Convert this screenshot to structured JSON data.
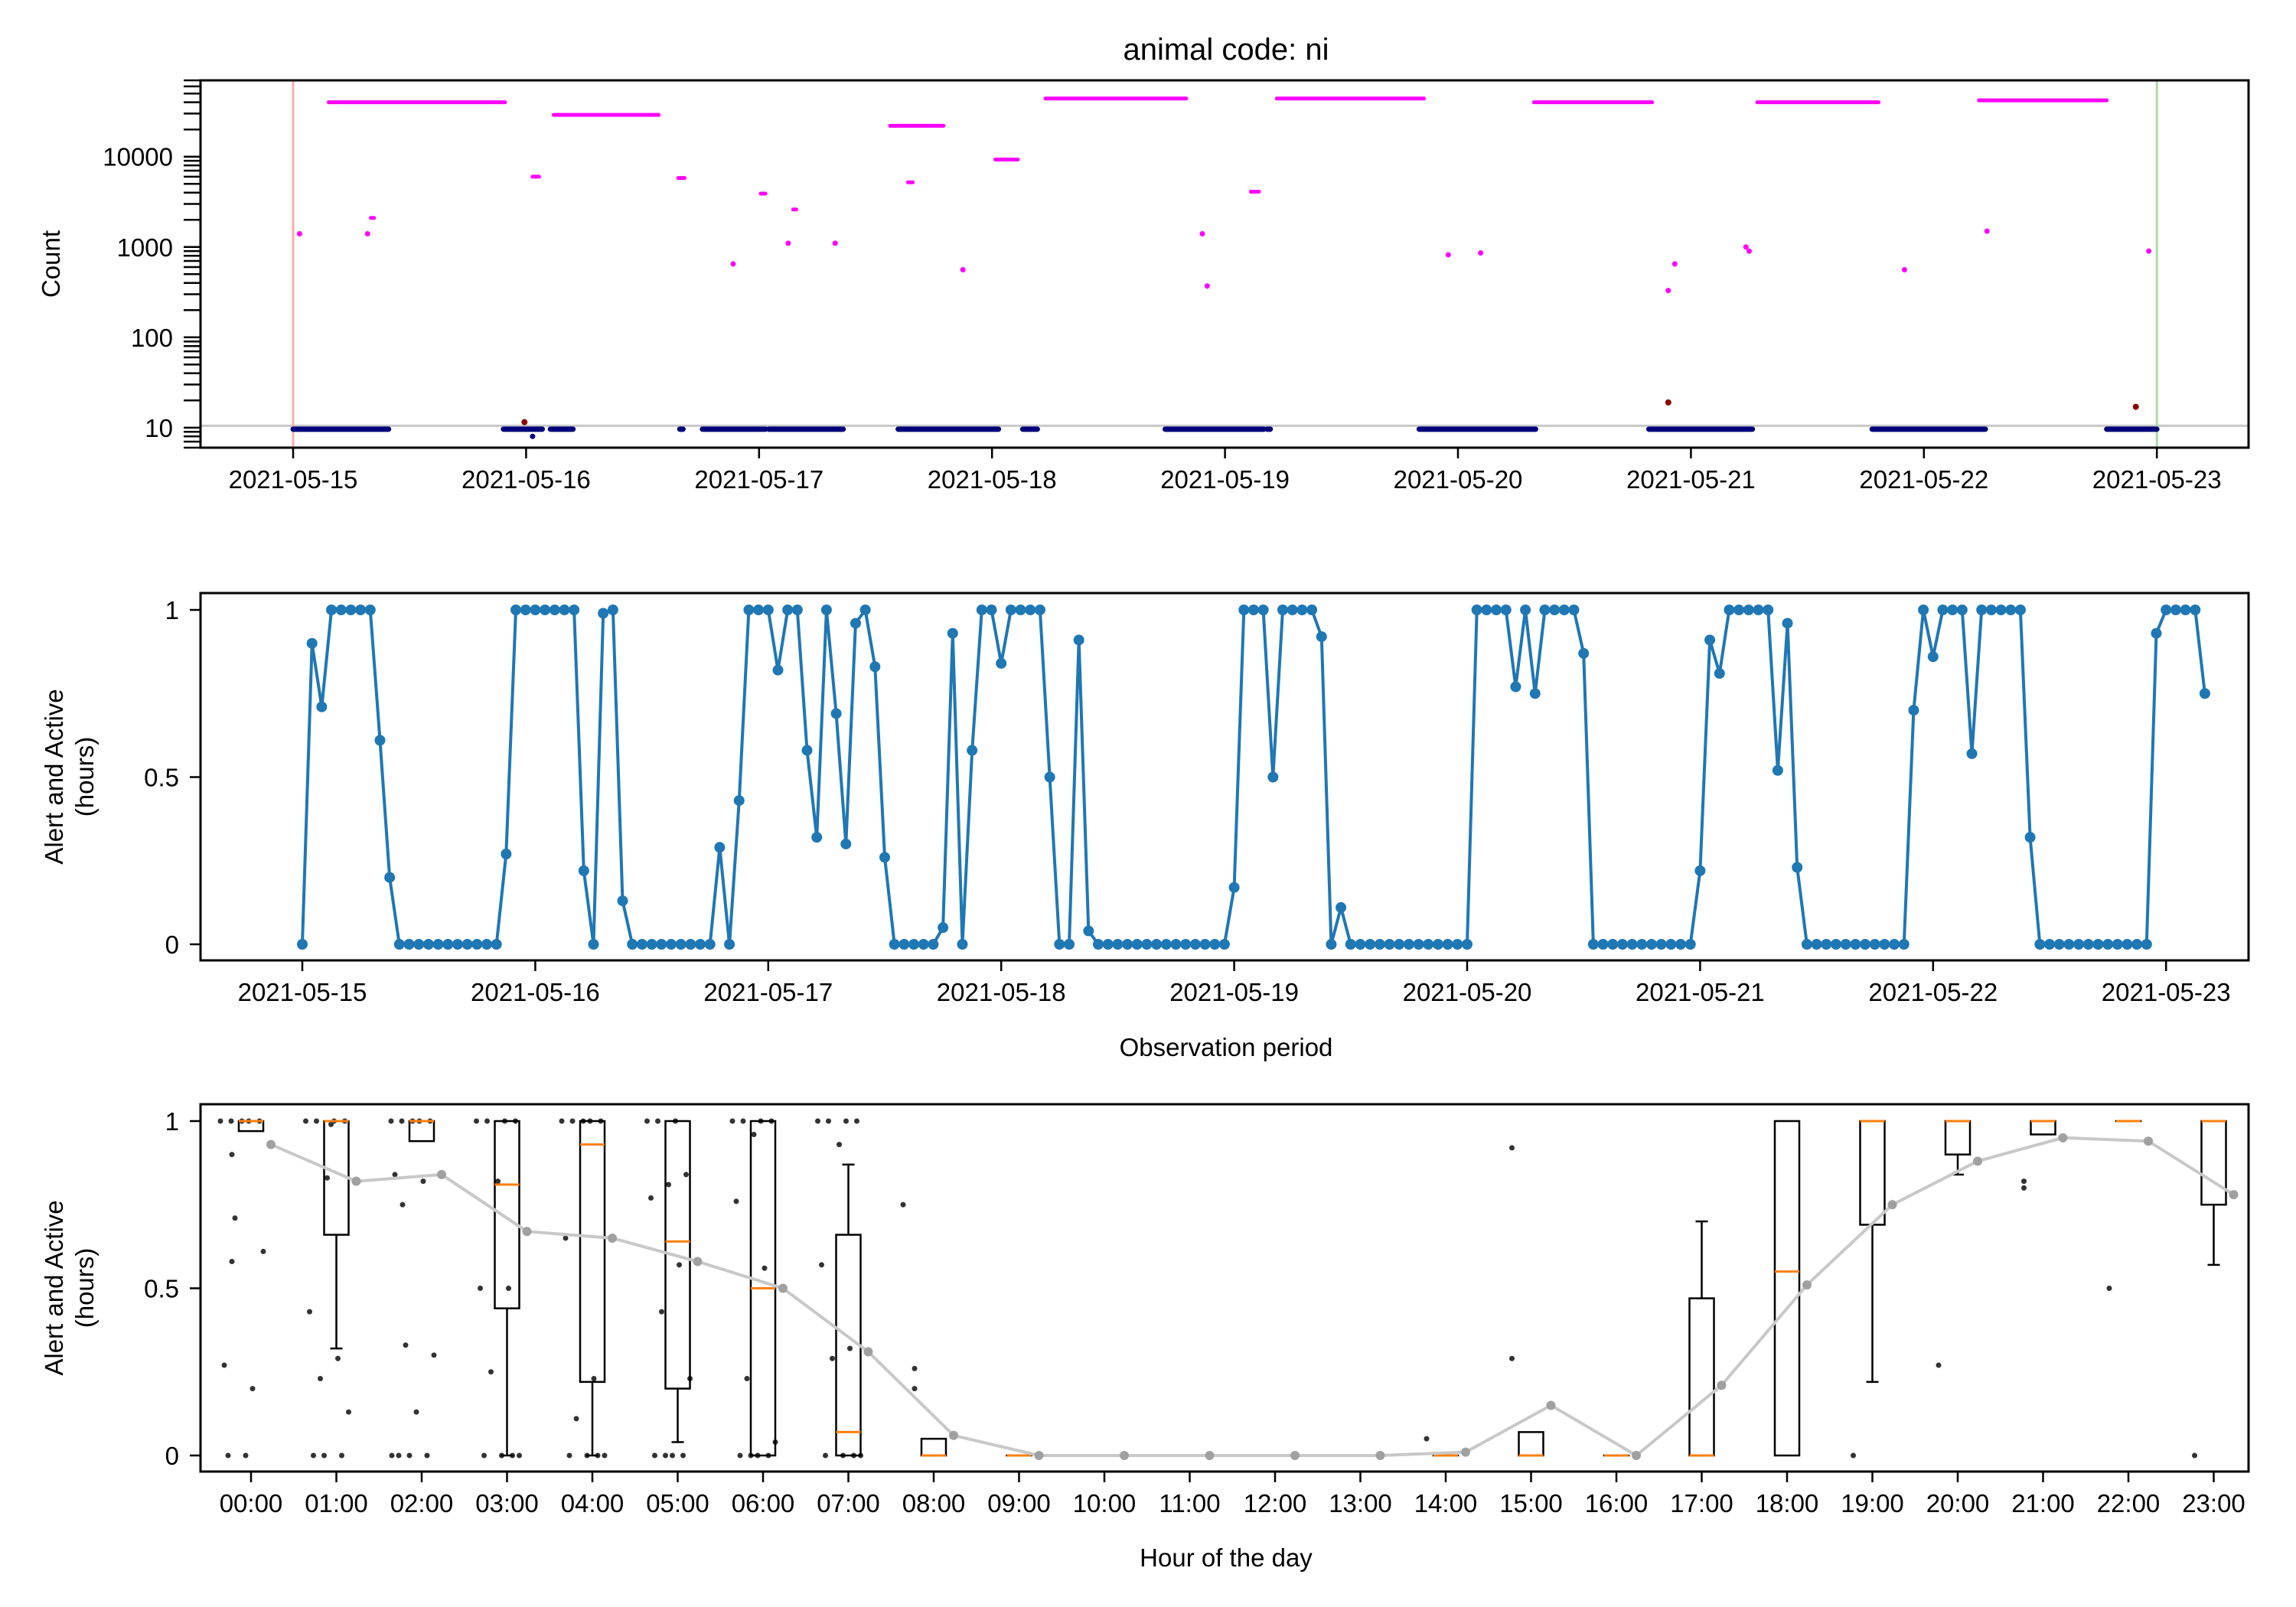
{
  "figure": {
    "title": "animal code: ni"
  },
  "chart_data": [
    {
      "type": "scatter",
      "panel": "top",
      "title": "animal code: ni",
      "ylabel": "Count",
      "xlabel": "",
      "y_scale": "log",
      "ylim": [
        6,
        70000
      ],
      "xlim": [
        "2021-05-14T15:00",
        "2021-05-23T16:00"
      ],
      "x_ticks": [
        "2021-05-15",
        "2021-05-16",
        "2021-05-17",
        "2021-05-18",
        "2021-05-19",
        "2021-05-20",
        "2021-05-21",
        "2021-05-22",
        "2021-05-23"
      ],
      "y_ticks": [
        10,
        100,
        1000,
        10000
      ],
      "y_tick_labels": [
        "10",
        "100",
        "1000",
        "10000"
      ],
      "grid": false,
      "reference_lines": [
        {
          "orientation": "horizontal",
          "y": 10.5,
          "color": "#c8c8c8"
        },
        {
          "orientation": "vertical",
          "x": "2021-05-15T00:00",
          "color": "#ffaaaa"
        },
        {
          "orientation": "vertical",
          "x": "2021-05-23T00:00",
          "color": "#a8dba8"
        }
      ],
      "colors": {
        "magenta": "#ff00ff",
        "navy": "#00007a",
        "darkred": "#8b0000"
      },
      "magenta_segments": [
        {
          "x0": "2021-05-15T03:40",
          "x1": "2021-05-15T21:50",
          "y": 40000
        },
        {
          "x0": "2021-05-16T02:50",
          "x1": "2021-05-16T13:40",
          "y": 29000
        },
        {
          "x0": "2021-05-17T13:30",
          "x1": "2021-05-17T19:00",
          "y": 22000
        },
        {
          "x0": "2021-05-18T05:30",
          "x1": "2021-05-18T20:00",
          "y": 44000
        },
        {
          "x0": "2021-05-19T05:20",
          "x1": "2021-05-19T20:30",
          "y": 44000
        },
        {
          "x0": "2021-05-20T07:50",
          "x1": "2021-05-20T20:00",
          "y": 40000
        },
        {
          "x0": "2021-05-21T06:50",
          "x1": "2021-05-21T19:20",
          "y": 40000
        },
        {
          "x0": "2021-05-22T05:40",
          "x1": "2021-05-22T18:50",
          "y": 42000
        },
        {
          "x0": "2021-05-16T00:40",
          "x1": "2021-05-16T01:20",
          "y": 6000
        },
        {
          "x0": "2021-05-16T15:40",
          "x1": "2021-05-16T16:20",
          "y": 5800
        },
        {
          "x0": "2021-05-17T15:20",
          "x1": "2021-05-17T15:50",
          "y": 5200
        },
        {
          "x0": "2021-05-18T00:20",
          "x1": "2021-05-18T02:40",
          "y": 9300
        },
        {
          "x0": "2021-05-17T00:10",
          "x1": "2021-05-17T00:40",
          "y": 3900
        },
        {
          "x0": "2021-05-17T03:30",
          "x1": "2021-05-17T03:50",
          "y": 2600
        },
        {
          "x0": "2021-05-19T02:40",
          "x1": "2021-05-19T03:30",
          "y": 4100
        },
        {
          "x0": "2021-05-15T08:00",
          "x1": "2021-05-15T08:20",
          "y": 2100
        }
      ],
      "magenta_points": [
        {
          "x": "2021-05-15T00:40",
          "y": 1400
        },
        {
          "x": "2021-05-15T07:40",
          "y": 1400
        },
        {
          "x": "2021-05-16T21:20",
          "y": 650
        },
        {
          "x": "2021-05-17T03:00",
          "y": 1100
        },
        {
          "x": "2021-05-17T07:50",
          "y": 1100
        },
        {
          "x": "2021-05-17T21:00",
          "y": 560
        },
        {
          "x": "2021-05-18T21:40",
          "y": 1400
        },
        {
          "x": "2021-05-18T22:10",
          "y": 370
        },
        {
          "x": "2021-05-19T23:00",
          "y": 820
        },
        {
          "x": "2021-05-20T02:20",
          "y": 860
        },
        {
          "x": "2021-05-20T21:40",
          "y": 330
        },
        {
          "x": "2021-05-20T22:20",
          "y": 650
        },
        {
          "x": "2021-05-21T05:40",
          "y": 1000
        },
        {
          "x": "2021-05-21T06:00",
          "y": 900
        },
        {
          "x": "2021-05-21T22:00",
          "y": 560
        },
        {
          "x": "2021-05-22T06:30",
          "y": 1500
        },
        {
          "x": "2021-05-22T23:10",
          "y": 900
        }
      ],
      "navy_segments": [
        {
          "x0": "2021-05-15T00:00",
          "x1": "2021-05-15T09:50",
          "y": 10
        },
        {
          "x0": "2021-05-15T21:40",
          "x1": "2021-05-16T01:40",
          "y": 10
        },
        {
          "x0": "2021-05-16T02:30",
          "x1": "2021-05-16T04:50",
          "y": 10
        },
        {
          "x0": "2021-05-16T15:50",
          "x1": "2021-05-16T16:10",
          "y": 10
        },
        {
          "x0": "2021-05-16T18:10",
          "x1": "2021-05-17T00:40",
          "y": 10
        },
        {
          "x0": "2021-05-17T01:00",
          "x1": "2021-05-17T08:40",
          "y": 10
        },
        {
          "x0": "2021-05-17T14:20",
          "x1": "2021-05-18T00:40",
          "y": 10
        },
        {
          "x0": "2021-05-18T03:10",
          "x1": "2021-05-18T04:40",
          "y": 10
        },
        {
          "x0": "2021-05-18T17:50",
          "x1": "2021-05-19T04:00",
          "y": 10
        },
        {
          "x0": "2021-05-19T04:20",
          "x1": "2021-05-19T04:40",
          "y": 10
        },
        {
          "x0": "2021-05-19T20:00",
          "x1": "2021-05-20T08:00",
          "y": 10
        },
        {
          "x0": "2021-05-20T19:40",
          "x1": "2021-05-21T06:20",
          "y": 10
        },
        {
          "x0": "2021-05-21T18:40",
          "x1": "2021-05-22T06:20",
          "y": 10
        },
        {
          "x0": "2021-05-22T18:50",
          "x1": "2021-05-23T00:00",
          "y": 10
        }
      ],
      "navy_points": [
        {
          "x": "2021-05-16T00:40",
          "y": 8
        }
      ],
      "darkred_points": [
        {
          "x": "2021-05-15T23:50",
          "y": 11.5
        },
        {
          "x": "2021-05-20T21:40",
          "y": 19
        },
        {
          "x": "2021-05-22T21:50",
          "y": 17
        }
      ]
    },
    {
      "type": "line",
      "panel": "middle",
      "title": "",
      "xlabel": "Observation period",
      "ylabel": "Alert and Active\n(hours)",
      "ylim": [
        -0.05,
        1.05
      ],
      "x_ticks": [
        "2021-05-15",
        "2021-05-16",
        "2021-05-17",
        "2021-05-18",
        "2021-05-19",
        "2021-05-20",
        "2021-05-21",
        "2021-05-22",
        "2021-05-23"
      ],
      "y_ticks": [
        0,
        0.5,
        1
      ],
      "y_tick_labels": [
        "0",
        "0.5",
        "1"
      ],
      "x_start": "2021-05-15T00:00",
      "x_step_hours": 1,
      "grid": false,
      "colors": {
        "line": "#1f77b4"
      },
      "series": [
        {
          "values": [
            0,
            0.9,
            0.71,
            1,
            1,
            1,
            1,
            1,
            0.61,
            0.2,
            0,
            0,
            0,
            0,
            0,
            0,
            0,
            0,
            0,
            0,
            0,
            0.27,
            1,
            1,
            1,
            1,
            1,
            1,
            1,
            0.22,
            0,
            0.99,
            1,
            0.13,
            0,
            0,
            0,
            0,
            0,
            0,
            0,
            0,
            0,
            0.29,
            0,
            0.43,
            1,
            1,
            1,
            0.82,
            1,
            1,
            0.58,
            0.32,
            1,
            0.69,
            0.3,
            0.96,
            1,
            0.83,
            0.26,
            0,
            0,
            0,
            0,
            0,
            0.05,
            0.93,
            0,
            0.58,
            1,
            1,
            0.84,
            1,
            1,
            1,
            1,
            0.5,
            0,
            0,
            0.91,
            0.04,
            0,
            0,
            0,
            0,
            0,
            0,
            0,
            0,
            0,
            0,
            0,
            0,
            0,
            0,
            0.17,
            1,
            1,
            1,
            0.5,
            1,
            1,
            1,
            1,
            0.92,
            0,
            0.11,
            0,
            0,
            0,
            0,
            0,
            0,
            0,
            0,
            0,
            0,
            0,
            0,
            0,
            1,
            1,
            1,
            1,
            0.77,
            1,
            0.75,
            1,
            1,
            1,
            1,
            0.87,
            0,
            0,
            0,
            0,
            0,
            0,
            0,
            0,
            0,
            0,
            0,
            0.22,
            0.91,
            0.81,
            1,
            1,
            1,
            1,
            1,
            0.52,
            0.96,
            0.23,
            0,
            0,
            0,
            0,
            0,
            0,
            0,
            0,
            0,
            0,
            0,
            0.7,
            1,
            0.86,
            1,
            1,
            1,
            0.57,
            1,
            1,
            1,
            1,
            1,
            0.32,
            0,
            0,
            0,
            0,
            0,
            0,
            0,
            0,
            0,
            0,
            0,
            0,
            0.93,
            1,
            1,
            1,
            1,
            0.75
          ]
        }
      ]
    },
    {
      "type": "box",
      "panel": "bottom",
      "title": "",
      "xlabel": "Hour of the day",
      "ylabel": "Alert and Active\n(hours)",
      "ylim": [
        -0.05,
        1.05
      ],
      "categories": [
        "00:00",
        "01:00",
        "02:00",
        "03:00",
        "04:00",
        "05:00",
        "06:00",
        "07:00",
        "08:00",
        "09:00",
        "10:00",
        "11:00",
        "12:00",
        "13:00",
        "14:00",
        "15:00",
        "16:00",
        "17:00",
        "18:00",
        "19:00",
        "20:00",
        "21:00",
        "22:00",
        "23:00"
      ],
      "y_ticks": [
        0,
        0.5,
        1
      ],
      "y_tick_labels": [
        "0",
        "0.5",
        "1"
      ],
      "grid": false,
      "colors": {
        "box": "#000000",
        "median": "#ff7f0e",
        "mean_line": "#c8c8c8",
        "mean_point": "#a0a0a0",
        "points": "#333333"
      },
      "boxes": [
        {
          "q1": 0.97,
          "median": 1,
          "q3": 1,
          "wlo": 0.97,
          "whi": 1
        },
        {
          "q1": 0.66,
          "median": 1,
          "q3": 1,
          "wlo": 0.32,
          "whi": 1
        },
        {
          "q1": 0.94,
          "median": 1,
          "q3": 1,
          "wlo": 0.94,
          "whi": 1
        },
        {
          "q1": 0.44,
          "median": 0.81,
          "q3": 1,
          "wlo": 0,
          "whi": 1
        },
        {
          "q1": 0.22,
          "median": 0.93,
          "q3": 1,
          "wlo": 0,
          "whi": 1
        },
        {
          "q1": 0.2,
          "median": 0.64,
          "q3": 1,
          "wlo": 0.04,
          "whi": 1
        },
        {
          "q1": 0,
          "median": 0.5,
          "q3": 1,
          "wlo": 0,
          "whi": 1
        },
        {
          "q1": 0,
          "median": 0.07,
          "q3": 0.66,
          "wlo": 0,
          "whi": 0.87
        },
        {
          "q1": 0,
          "median": 0,
          "q3": 0.05,
          "wlo": 0,
          "whi": 0.05
        },
        {
          "q1": 0,
          "median": 0,
          "q3": 0,
          "wlo": 0,
          "whi": 0
        },
        {
          "q1": 0,
          "median": 0,
          "q3": 0,
          "wlo": 0,
          "whi": 0
        },
        {
          "q1": 0,
          "median": 0,
          "q3": 0,
          "wlo": 0,
          "whi": 0
        },
        {
          "q1": 0,
          "median": 0,
          "q3": 0,
          "wlo": 0,
          "whi": 0
        },
        {
          "q1": 0,
          "median": 0,
          "q3": 0,
          "wlo": 0,
          "whi": 0
        },
        {
          "q1": 0,
          "median": 0,
          "q3": 0,
          "wlo": 0,
          "whi": 0
        },
        {
          "q1": 0,
          "median": 0,
          "q3": 0.07,
          "wlo": 0,
          "whi": 0.07
        },
        {
          "q1": 0,
          "median": 0,
          "q3": 0,
          "wlo": 0,
          "whi": 0
        },
        {
          "q1": 0,
          "median": 0,
          "q3": 0.47,
          "wlo": 0,
          "whi": 0.7
        },
        {
          "q1": 0,
          "median": 0.55,
          "q3": 1,
          "wlo": 0,
          "whi": 1
        },
        {
          "q1": 0.69,
          "median": 1,
          "q3": 1,
          "wlo": 0.22,
          "whi": 1
        },
        {
          "q1": 0.9,
          "median": 1,
          "q3": 1,
          "wlo": 0.84,
          "whi": 1
        },
        {
          "q1": 0.96,
          "median": 1,
          "q3": 1,
          "wlo": 0.96,
          "whi": 1
        },
        {
          "q1": 1,
          "median": 1,
          "q3": 1,
          "wlo": 1,
          "whi": 1
        },
        {
          "q1": 0.75,
          "median": 1,
          "q3": 1,
          "wlo": 0.57,
          "whi": 1
        }
      ],
      "means": [
        0.93,
        0.82,
        0.84,
        0.67,
        0.65,
        0.58,
        0.5,
        0.31,
        0.06,
        0,
        0,
        0,
        0,
        0,
        0.01,
        0.15,
        0,
        0.21,
        0.51,
        0.75,
        0.88,
        0.95,
        0.94,
        0.78
      ],
      "outliers": [
        {
          "hour": 0,
          "values": [
            0.9,
            0.58
          ]
        },
        {
          "hour": 2,
          "values": [
            0.75
          ]
        },
        {
          "hour": 8,
          "values": [
            0.26,
            0.2
          ]
        },
        {
          "hour": 14,
          "values": [
            0.05
          ]
        },
        {
          "hour": 15,
          "values": [
            0.92,
            0.29
          ]
        },
        {
          "hour": 18,
          "values": []
        },
        {
          "hour": 19,
          "values": [
            0
          ]
        },
        {
          "hour": 20,
          "values": [
            0.27
          ]
        },
        {
          "hour": 21,
          "values": [
            0.82,
            0.8
          ]
        },
        {
          "hour": 22,
          "values": [
            0.5
          ]
        },
        {
          "hour": 23,
          "values": [
            0
          ]
        }
      ],
      "jitter_points": [
        {
          "hour": 0,
          "values": [
            1,
            1,
            1,
            1,
            1,
            0.27,
            0.2,
            0.71,
            0.61,
            0,
            0
          ]
        },
        {
          "hour": 1,
          "values": [
            1,
            1,
            1,
            1,
            0.83,
            0.43,
            0.29,
            0.23,
            0.13,
            0.99,
            0,
            0,
            0
          ]
        },
        {
          "hour": 2,
          "values": [
            1,
            1,
            1,
            1,
            1,
            0.84,
            0.82,
            0.33,
            0.3,
            0.13,
            0,
            0,
            0,
            0
          ]
        },
        {
          "hour": 3,
          "values": [
            1,
            1,
            1,
            1,
            0.82,
            0.5,
            0.5,
            0.25,
            0,
            0,
            0,
            0
          ]
        },
        {
          "hour": 4,
          "values": [
            1,
            1,
            1,
            1,
            1,
            0.65,
            0.23,
            0.11,
            0,
            0,
            0,
            0
          ]
        },
        {
          "hour": 5,
          "values": [
            1,
            1,
            1,
            0.84,
            0.81,
            0.77,
            0.57,
            0.43,
            0.23,
            0,
            0,
            0,
            0
          ]
        },
        {
          "hour": 6,
          "values": [
            1,
            1,
            1,
            1,
            0.96,
            0.76,
            0.56,
            0.23,
            0.04,
            0,
            0,
            0,
            0
          ]
        },
        {
          "hour": 7,
          "values": [
            1,
            1,
            1,
            1,
            0.93,
            0.57,
            0.32,
            0.29,
            0,
            0,
            0,
            0
          ]
        },
        {
          "hour": 8,
          "values": [
            0.75
          ]
        }
      ]
    }
  ]
}
